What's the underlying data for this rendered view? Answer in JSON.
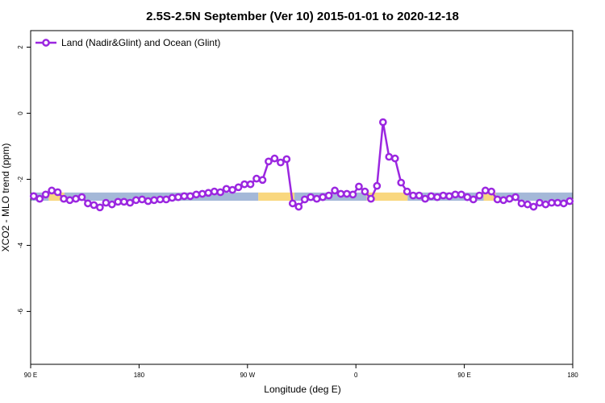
{
  "chart_data": {
    "type": "line",
    "title": "2.5S-2.5N September (Ver 10)   2015-01-01 to 2020-12-18",
    "x_label": "Longitude (deg E)",
    "y_label": "XCO2 - MLO trend (ppm)",
    "xlim": [
      90,
      540
    ],
    "ylim": [
      -7.6,
      2.5
    ],
    "xticks": [
      {
        "value": 90,
        "label": "90 E"
      },
      180,
      {
        "value": 270,
        "label": "90 W"
      },
      {
        "value": 360,
        "label": "0"
      },
      {
        "value": 450,
        "label": "90 E"
      },
      {
        "value": 540,
        "label": "180"
      }
    ],
    "yticks": [
      2,
      0,
      -2,
      -4,
      -6
    ],
    "legend": "top-left",
    "band": {
      "ylim": [
        -2.65,
        -2.4
      ],
      "segments": [
        {
          "from": 90,
          "to": 105,
          "color": "#a4b8d8"
        },
        {
          "from": 105,
          "to": 118,
          "color": "#f9d77e"
        },
        {
          "from": 118,
          "to": 279,
          "color": "#a4b8d8"
        },
        {
          "from": 279,
          "to": 309,
          "color": "#f9d77e"
        },
        {
          "from": 309,
          "to": 369,
          "color": "#a4b8d8"
        },
        {
          "from": 369,
          "to": 403,
          "color": "#f9d77e"
        },
        {
          "from": 403,
          "to": 466,
          "color": "#a4b8d8"
        },
        {
          "from": 466,
          "to": 476,
          "color": "#f9d77e"
        },
        {
          "from": 476,
          "to": 540,
          "color": "#a4b8d8"
        }
      ]
    },
    "x": [
      92.5,
      97.5,
      102.5,
      107.5,
      112.5,
      117.5,
      122.5,
      127.5,
      132.5,
      137.5,
      142.5,
      147.5,
      152.5,
      157.5,
      162.5,
      167.5,
      172.5,
      177.5,
      182.5,
      187.5,
      192.5,
      197.5,
      202.5,
      207.5,
      212.5,
      217.5,
      222.5,
      227.5,
      232.5,
      237.5,
      242.5,
      247.5,
      252.5,
      257.5,
      262.5,
      267.5,
      272.5,
      277.5,
      282.5,
      287.5,
      292.5,
      297.5,
      302.5,
      307.5,
      312.5,
      317.5,
      322.5,
      327.5,
      332.5,
      337.5,
      342.5,
      347.5,
      352.5,
      357.5,
      362.5,
      367.5,
      372.5,
      377.5,
      382.5,
      387.5,
      392.5,
      397.5,
      402.5,
      407.5,
      412.5,
      417.5,
      422.5,
      427.5,
      432.5,
      437.5,
      442.5,
      447.5,
      452.5,
      457.5,
      462.5,
      467.5,
      472.5,
      477.5,
      482.5,
      487.5,
      492.5,
      497.5,
      502.5,
      507.5,
      512.5,
      517.5,
      522.5,
      527.5,
      532.5,
      537.5
    ],
    "series": [
      {
        "name": "Land (Nadir&Glint) and Ocean (Glint)",
        "color": "#9b27e0",
        "values": [
          -2.51,
          -2.59,
          -2.46,
          -2.34,
          -2.39,
          -2.59,
          -2.63,
          -2.59,
          -2.54,
          -2.73,
          -2.78,
          -2.85,
          -2.71,
          -2.76,
          -2.68,
          -2.68,
          -2.71,
          -2.63,
          -2.61,
          -2.66,
          -2.63,
          -2.61,
          -2.61,
          -2.56,
          -2.54,
          -2.51,
          -2.51,
          -2.46,
          -2.44,
          -2.41,
          -2.37,
          -2.39,
          -2.29,
          -2.32,
          -2.24,
          -2.15,
          -2.15,
          -1.98,
          -2.02,
          -1.46,
          -1.37,
          -1.49,
          -1.39,
          -2.73,
          -2.83,
          -2.61,
          -2.54,
          -2.59,
          -2.54,
          -2.49,
          -2.34,
          -2.44,
          -2.44,
          -2.46,
          -2.22,
          -2.37,
          -2.59,
          -2.2,
          -0.27,
          -1.32,
          -1.37,
          -2.1,
          -2.37,
          -2.49,
          -2.49,
          -2.59,
          -2.51,
          -2.54,
          -2.49,
          -2.51,
          -2.46,
          -2.46,
          -2.54,
          -2.61,
          -2.49,
          -2.34,
          -2.37,
          -2.61,
          -2.63,
          -2.59,
          -2.54,
          -2.73,
          -2.76,
          -2.83,
          -2.71,
          -2.76,
          -2.71,
          -2.71,
          -2.73,
          -2.66
        ]
      }
    ]
  }
}
